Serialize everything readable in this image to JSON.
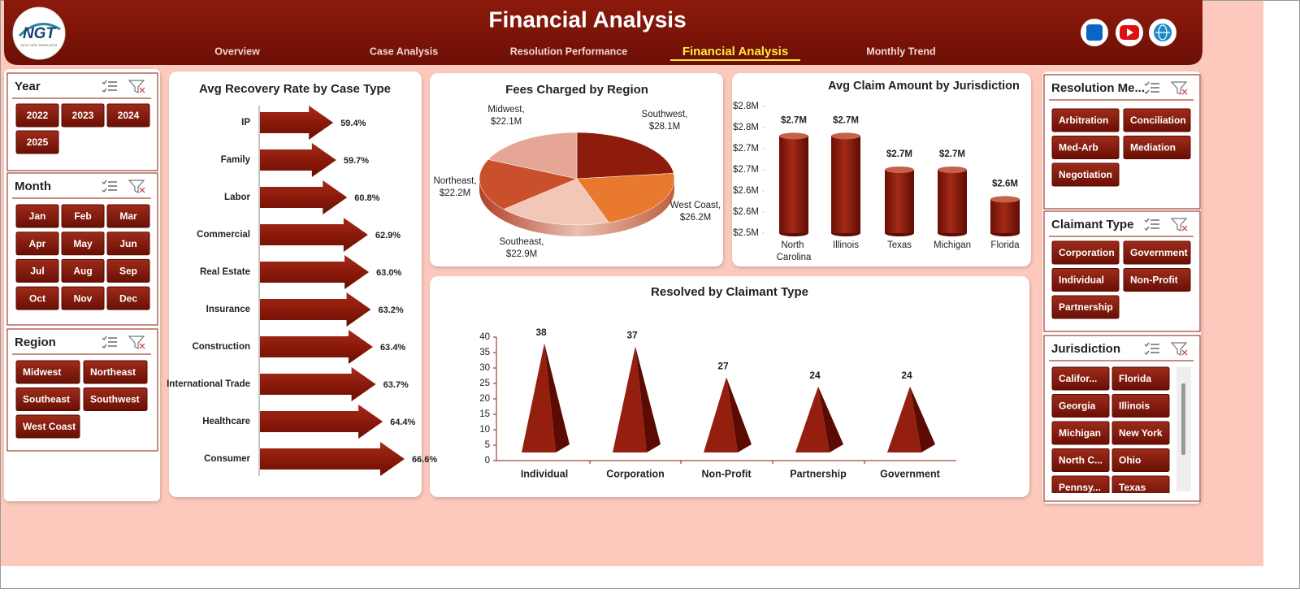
{
  "header": {
    "logo": "NGT",
    "logo_caption": "NEXT GEN TEMPLATES",
    "title": "Financial Analysis"
  },
  "nav": {
    "items": [
      "Overview",
      "Case Analysis",
      "Resolution Performance",
      "Financial Analysis",
      "Monthly Trend"
    ],
    "active": 3
  },
  "slicers": [
    {
      "title": "Year",
      "items": [
        "2022",
        "2023",
        "2024",
        "2025"
      ]
    },
    {
      "title": "Month",
      "items": [
        "Jan",
        "Feb",
        "Mar",
        "Apr",
        "May",
        "Jun",
        "Jul",
        "Aug",
        "Sep",
        "Oct",
        "Nov",
        "Dec"
      ]
    },
    {
      "title": "Region",
      "items": [
        "Midwest",
        "Northeast",
        "Southeast",
        "Southwest",
        "West Coast"
      ]
    },
    {
      "title": "Resolution Me...",
      "items": [
        "Arbitration",
        "Conciliation",
        "Med-Arb",
        "Mediation",
        "Negotiation"
      ]
    },
    {
      "title": "Claimant Type",
      "items": [
        "Corporation",
        "Government",
        "Individual",
        "Non-Profit",
        "Partnership"
      ]
    },
    {
      "title": "Jurisdiction",
      "items": [
        "Califor...",
        "Florida",
        "Georgia",
        "Illinois",
        "Michigan",
        "New York",
        "North C...",
        "Ohio",
        "Pennsy...",
        "Texas"
      ]
    }
  ],
  "chart_data": [
    {
      "type": "arrow",
      "title": "Avg Recovery Rate by Case Type",
      "categories": [
        "IP",
        "Family",
        "Labor",
        "Commercial",
        "Real Estate",
        "Insurance",
        "Construction",
        "International Trade",
        "Healthcare",
        "Consumer"
      ],
      "values": [
        59.4,
        59.7,
        60.8,
        62.9,
        63.0,
        63.2,
        63.4,
        63.7,
        64.4,
        66.6
      ],
      "value_labels": [
        "59.4%",
        "59.7%",
        "60.8%",
        "62.9%",
        "63.0%",
        "63.2%",
        "63.4%",
        "63.7%",
        "64.4%",
        "66.6%"
      ],
      "color": "#8b1a0a",
      "xlim": [
        52,
        68
      ]
    },
    {
      "type": "pie",
      "title": "Fees Charged by Region",
      "categories": [
        "Southwest,",
        "West Coast,",
        "Southeast,",
        "Northeast,",
        "Midwest,"
      ],
      "values": [
        28.1,
        26.2,
        22.9,
        22.2,
        22.1
      ],
      "value_labels": [
        "$28.1M",
        "$26.2M",
        "$22.9M",
        "$22.2M",
        "$22.1M"
      ],
      "colors": [
        "#8e1c0c",
        "#e8792f",
        "#f3c7b8",
        "#c9502a",
        "#e6a696"
      ]
    },
    {
      "type": "cylinder",
      "title": "Avg Claim Amount by Jurisdiction",
      "categories": [
        "North Carolina",
        "Illinois",
        "Texas",
        "Michigan",
        "Florida"
      ],
      "values": [
        2.73,
        2.73,
        2.65,
        2.65,
        2.58
      ],
      "value_labels": [
        "$2.7M",
        "$2.7M",
        "$2.7M",
        "$2.7M",
        "$2.6M"
      ],
      "color": "#8b1a0a",
      "ylim": [
        2.5,
        2.8
      ],
      "yticks": [
        {
          "value": 2.5,
          "label": "$2.5M"
        },
        {
          "value": 2.55,
          "label": "$2.6M"
        },
        {
          "value": 2.6,
          "label": "$2.6M"
        },
        {
          "value": 2.65,
          "label": "$2.7M"
        },
        {
          "value": 2.7,
          "label": "$2.7M"
        },
        {
          "value": 2.75,
          "label": "$2.8M"
        },
        {
          "value": 2.8,
          "label": "$2.8M"
        }
      ]
    },
    {
      "type": "pyramid",
      "title": "Resolved by Claimant Type",
      "categories": [
        "Individual",
        "Corporation",
        "Non-Profit",
        "Partnership",
        "Government"
      ],
      "values": [
        38,
        37,
        27,
        24,
        24
      ],
      "color": "#8b1a0a",
      "ylim": [
        0,
        40
      ],
      "yticks": [
        0,
        5,
        10,
        15,
        20,
        25,
        30,
        35,
        40
      ]
    }
  ]
}
